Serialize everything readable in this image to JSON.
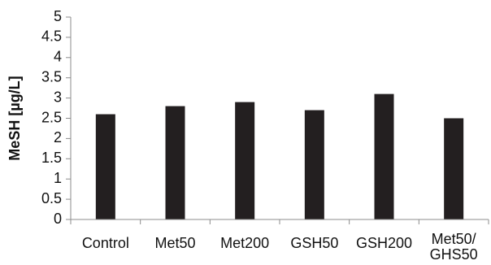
{
  "chart_data": {
    "type": "bar",
    "categories": [
      [
        "Control"
      ],
      [
        "Met50"
      ],
      [
        "Met200"
      ],
      [
        "GSH50"
      ],
      [
        "GSH200"
      ],
      [
        "Met50/",
        "GHS50"
      ]
    ],
    "values": [
      2.6,
      2.8,
      2.9,
      2.7,
      3.1,
      2.5
    ],
    "title": "",
    "xlabel": "",
    "ylabel": "MeSH [µg/L]",
    "ylim": [
      0,
      5
    ],
    "yticks": [
      "0",
      "0.5",
      "1",
      "1.5",
      "2",
      "2.5",
      "3",
      "3.5",
      "4",
      "4.5",
      "5"
    ],
    "grid": false,
    "legend": "none",
    "bar_color": "#231f20",
    "axis_color": "#8c8c8c"
  }
}
